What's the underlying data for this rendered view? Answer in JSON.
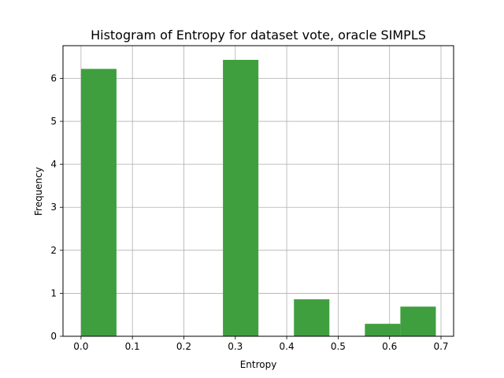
{
  "chart_data": {
    "type": "bar",
    "title": "Histogram of Entropy for dataset vote, oracle SIMPLS",
    "xlabel": "Entropy",
    "ylabel": "Frequency",
    "xlim": [
      -0.035,
      0.7245
    ],
    "ylim": [
      0,
      6.76
    ],
    "xticks": [
      0.0,
      0.1,
      0.2,
      0.3,
      0.4,
      0.5,
      0.6,
      0.7
    ],
    "xtick_labels": [
      "0.0",
      "0.1",
      "0.2",
      "0.3",
      "0.4",
      "0.5",
      "0.6",
      "0.7"
    ],
    "yticks": [
      0,
      1,
      2,
      3,
      4,
      5,
      6
    ],
    "ytick_labels": [
      "0",
      "1",
      "2",
      "3",
      "4",
      "5",
      "6"
    ],
    "grid": true,
    "bar_color": "#3f9f3f",
    "bars": [
      {
        "x0": 0.0,
        "x1": 0.069,
        "value": 6.22
      },
      {
        "x0": 0.276,
        "x1": 0.345,
        "value": 6.43
      },
      {
        "x0": 0.414,
        "x1": 0.483,
        "value": 0.86
      },
      {
        "x0": 0.552,
        "x1": 0.621,
        "value": 0.29
      },
      {
        "x0": 0.621,
        "x1": 0.69,
        "value": 0.69
      }
    ]
  }
}
